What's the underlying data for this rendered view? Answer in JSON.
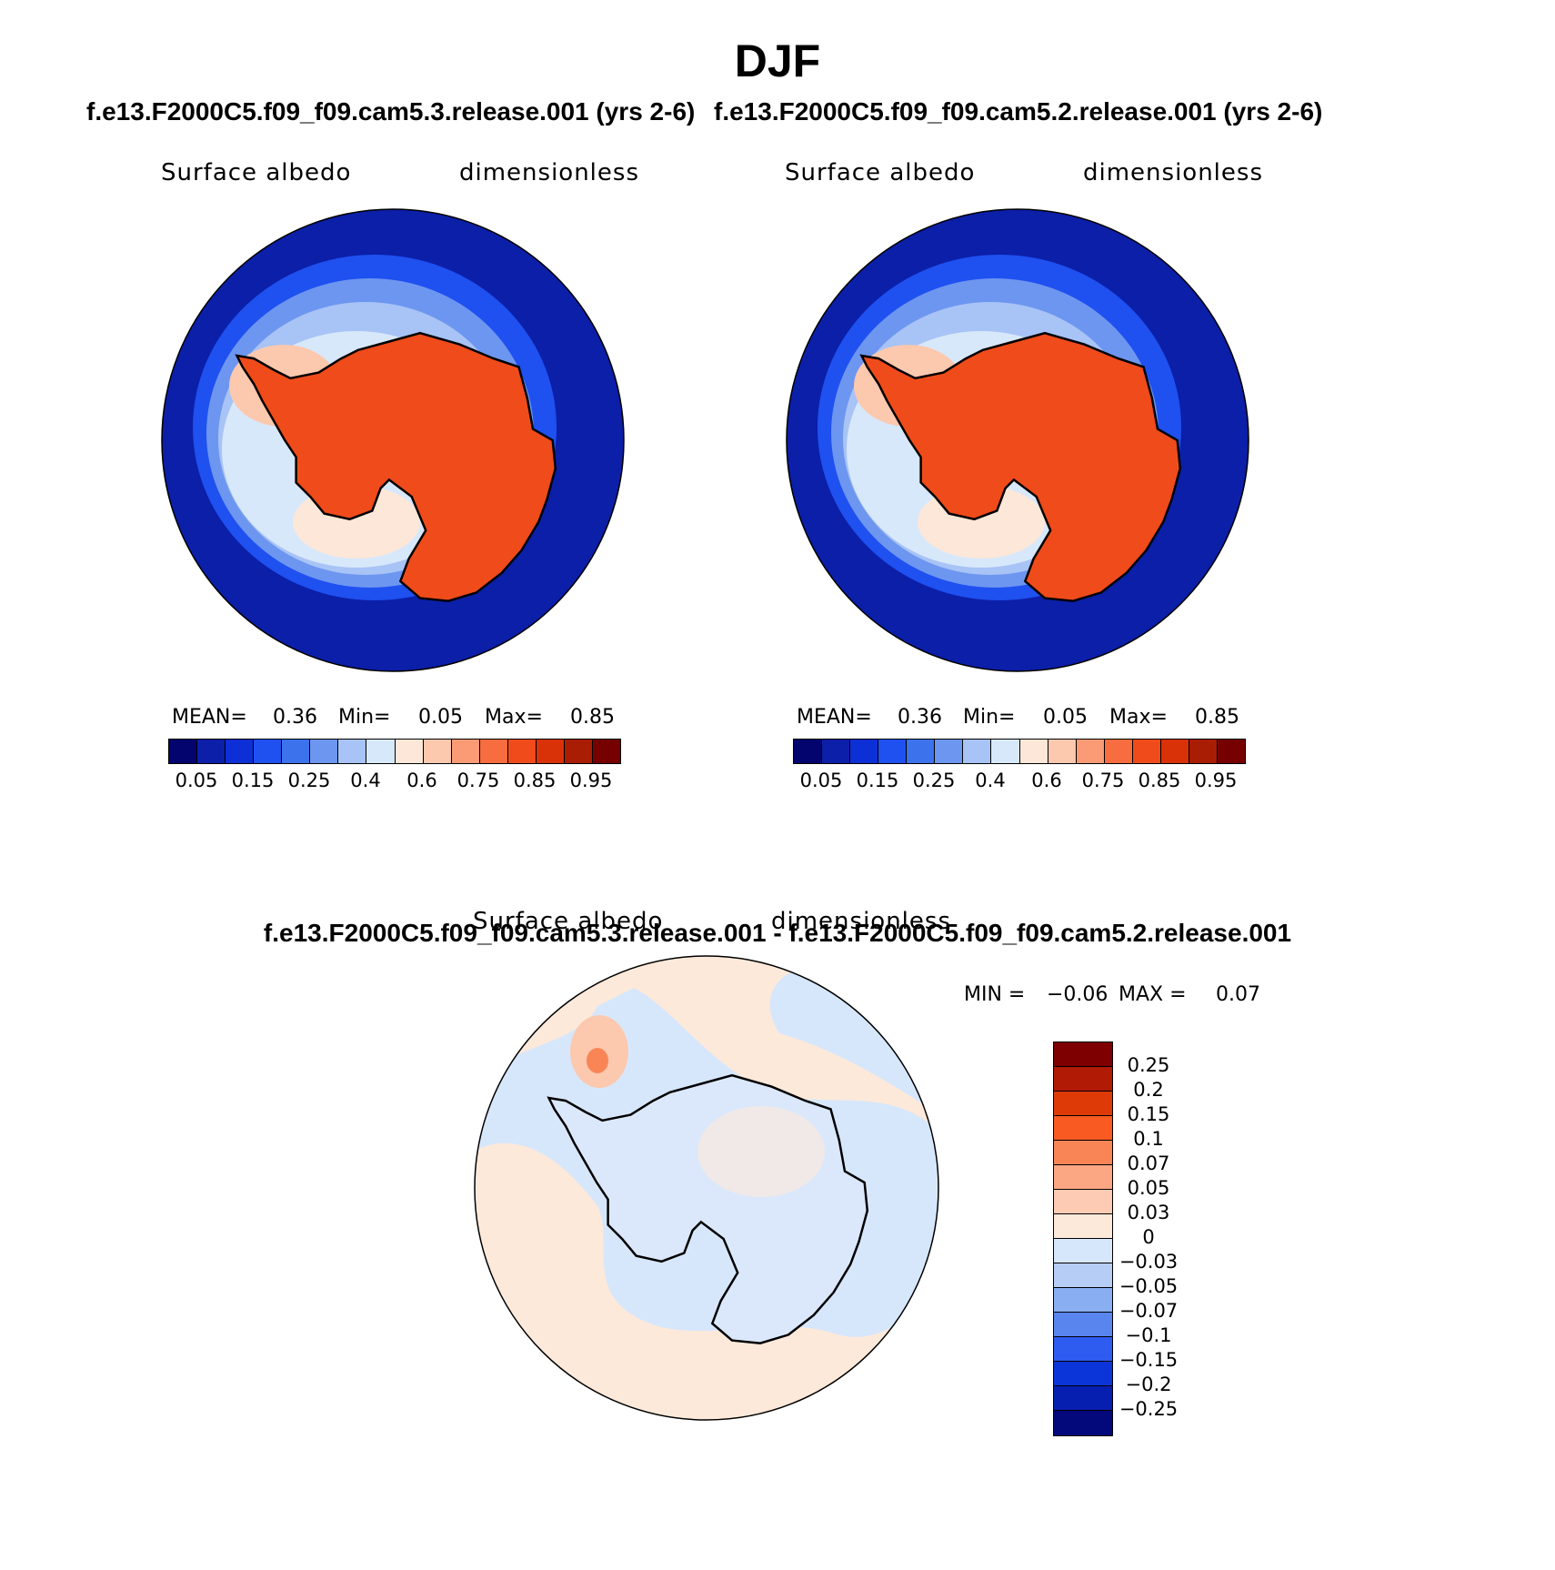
{
  "title": "DJF",
  "panels": {
    "left": {
      "case_title": "f.e13.F2000C5.f09_f09.cam5.3.release.001 (yrs 2-6)",
      "variable": "Surface albedo",
      "units": "dimensionless",
      "stats": {
        "mean_label": "MEAN=",
        "mean": "0.36",
        "min_label": "Min=",
        "min": "0.05",
        "max_label": "Max=",
        "max": "0.85"
      }
    },
    "right": {
      "case_title": "f.e13.F2000C5.f09_f09.cam5.2.release.001 (yrs 2-6)",
      "variable": "Surface albedo",
      "units": "dimensionless",
      "stats": {
        "mean_label": "MEAN=",
        "mean": "0.36",
        "min_label": "Min=",
        "min": "0.05",
        "max_label": "Max=",
        "max": "0.85"
      }
    },
    "diff": {
      "case_title": "f.e13.F2000C5.f09_f09.cam5.3.release.001 - f.e13.F2000C5.f09_f09.cam5.2.release.001",
      "variable": "Surface albedo",
      "units": "dimensionless",
      "stats": {
        "min_label": "MIN =",
        "min": "−0.06",
        "max_label": "MAX =",
        "max": "0.07"
      }
    }
  },
  "colorbars": {
    "abs": {
      "colors": [
        "#03046e",
        "#0b1fa8",
        "#0d2fd6",
        "#1f50f0",
        "#3c72ec",
        "#6d96f0",
        "#a8c3f5",
        "#d8e8fb",
        "#fde7d8",
        "#fcc8ae",
        "#fa9b75",
        "#f76d3f",
        "#f04b1b",
        "#d93208",
        "#a91d04",
        "#760000"
      ],
      "ticks": [
        "0.05",
        "0.15",
        "0.25",
        "0.4",
        "0.6",
        "0.75",
        "0.85",
        "0.95"
      ]
    },
    "diff": {
      "colors": [
        "#7e0000",
        "#b11a04",
        "#dd3a08",
        "#f85a22",
        "#f98556",
        "#fba784",
        "#fdcbb3",
        "#fde9da",
        "#d7e7fb",
        "#b6cdf6",
        "#8aaef2",
        "#5985ef",
        "#2f5cf0",
        "#0b35d9",
        "#061fb0",
        "#03097a"
      ],
      "labels": [
        "0.25",
        "0.2",
        "0.15",
        "0.1",
        "0.07",
        "0.05",
        "0.03",
        "0",
        "−0.03",
        "−0.05",
        "−0.07",
        "−0.1",
        "−0.15",
        "−0.2",
        "−0.25"
      ]
    }
  },
  "chart_data": [
    {
      "type": "heatmap",
      "projection": "south polar stereographic",
      "title": "DJF",
      "subtitle": "f.e13.F2000C5.f09_f09.cam5.3.release.001 (yrs 2-6)",
      "variable": "Surface albedo",
      "units": "dimensionless",
      "mean": 0.36,
      "min": 0.05,
      "max": 0.85,
      "levels": [
        0.05,
        0.1,
        0.15,
        0.2,
        0.25,
        0.3,
        0.4,
        0.5,
        0.6,
        0.7,
        0.75,
        0.8,
        0.85,
        0.9,
        0.95
      ]
    },
    {
      "type": "heatmap",
      "projection": "south polar stereographic",
      "title": "DJF",
      "subtitle": "f.e13.F2000C5.f09_f09.cam5.2.release.001 (yrs 2-6)",
      "variable": "Surface albedo",
      "units": "dimensionless",
      "mean": 0.36,
      "min": 0.05,
      "max": 0.85,
      "levels": [
        0.05,
        0.1,
        0.15,
        0.2,
        0.25,
        0.3,
        0.4,
        0.5,
        0.6,
        0.7,
        0.75,
        0.8,
        0.85,
        0.9,
        0.95
      ]
    },
    {
      "type": "heatmap",
      "projection": "south polar stereographic",
      "subtitle": "f.e13.F2000C5.f09_f09.cam5.3.release.001 - f.e13.F2000C5.f09_f09.cam5.2.release.001",
      "variable": "Surface albedo",
      "units": "dimensionless",
      "min": -0.06,
      "max": 0.07,
      "levels": [
        -0.25,
        -0.2,
        -0.15,
        -0.1,
        -0.07,
        -0.05,
        -0.03,
        0,
        0.03,
        0.05,
        0.07,
        0.1,
        0.15,
        0.2,
        0.25
      ]
    }
  ]
}
